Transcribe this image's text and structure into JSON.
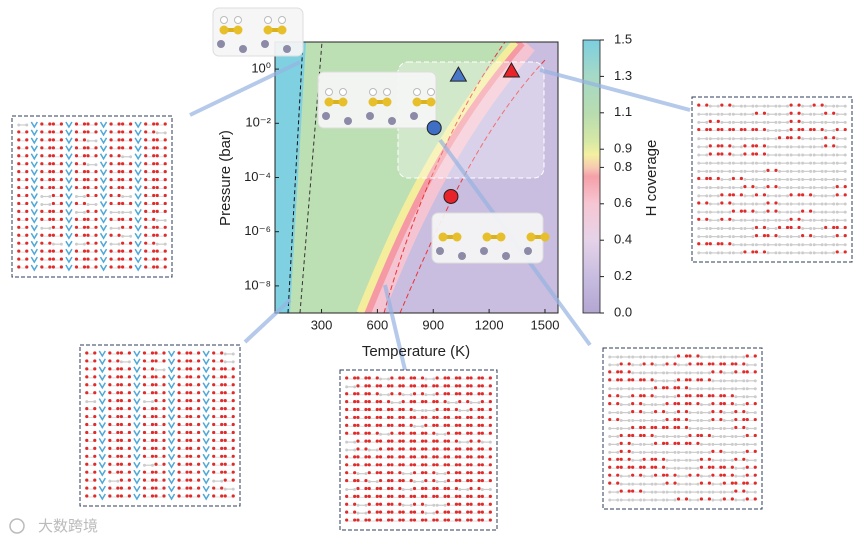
{
  "chart_data": {
    "type": "phase-map",
    "xlabel": "Temperature (K)",
    "ylabel": "Pressure (bar)",
    "colorbar_label": "H coverage",
    "xlim": [
      50,
      1570
    ],
    "xticks": [
      300,
      600,
      900,
      1200,
      1500
    ],
    "ylim": [
      1e-09,
      10
    ],
    "log_y": true,
    "yticks": [
      {
        "value": 1,
        "label": "10⁰"
      },
      {
        "value": 0.01,
        "label": "10⁻²"
      },
      {
        "value": 0.0001,
        "label": "10⁻⁴"
      },
      {
        "value": 1e-06,
        "label": "10⁻⁶"
      },
      {
        "value": 1e-08,
        "label": "10⁻⁸"
      }
    ],
    "clim": [
      0,
      1.5
    ],
    "cticks": [
      {
        "value": 0,
        "label": "0.0"
      },
      {
        "value": 0.2,
        "label": "0.2"
      },
      {
        "value": 0.4,
        "label": "0.4"
      },
      {
        "value": 0.6,
        "label": "0.6"
      },
      {
        "value": 0.8,
        "label": "0.8"
      },
      {
        "value": 0.9,
        "label": "0.9"
      },
      {
        "value": 1.1,
        "label": "1.1"
      },
      {
        "value": 1.3,
        "label": "1.3"
      },
      {
        "value": 1.5,
        "label": "1.5"
      }
    ],
    "points": [
      {
        "x": 905,
        "y": 0.0068,
        "shape": "circle",
        "color": "#3f6fc4"
      },
      {
        "x": 1035,
        "y": 0.6,
        "shape": "triangle",
        "color": "#4a78c8"
      },
      {
        "x": 1320,
        "y": 0.85,
        "shape": "triangle",
        "color": "#e8232a"
      },
      {
        "x": 995,
        "y": 2e-05,
        "shape": "circle",
        "color": "#e8232a"
      }
    ]
  },
  "watermark": "大数跨境"
}
